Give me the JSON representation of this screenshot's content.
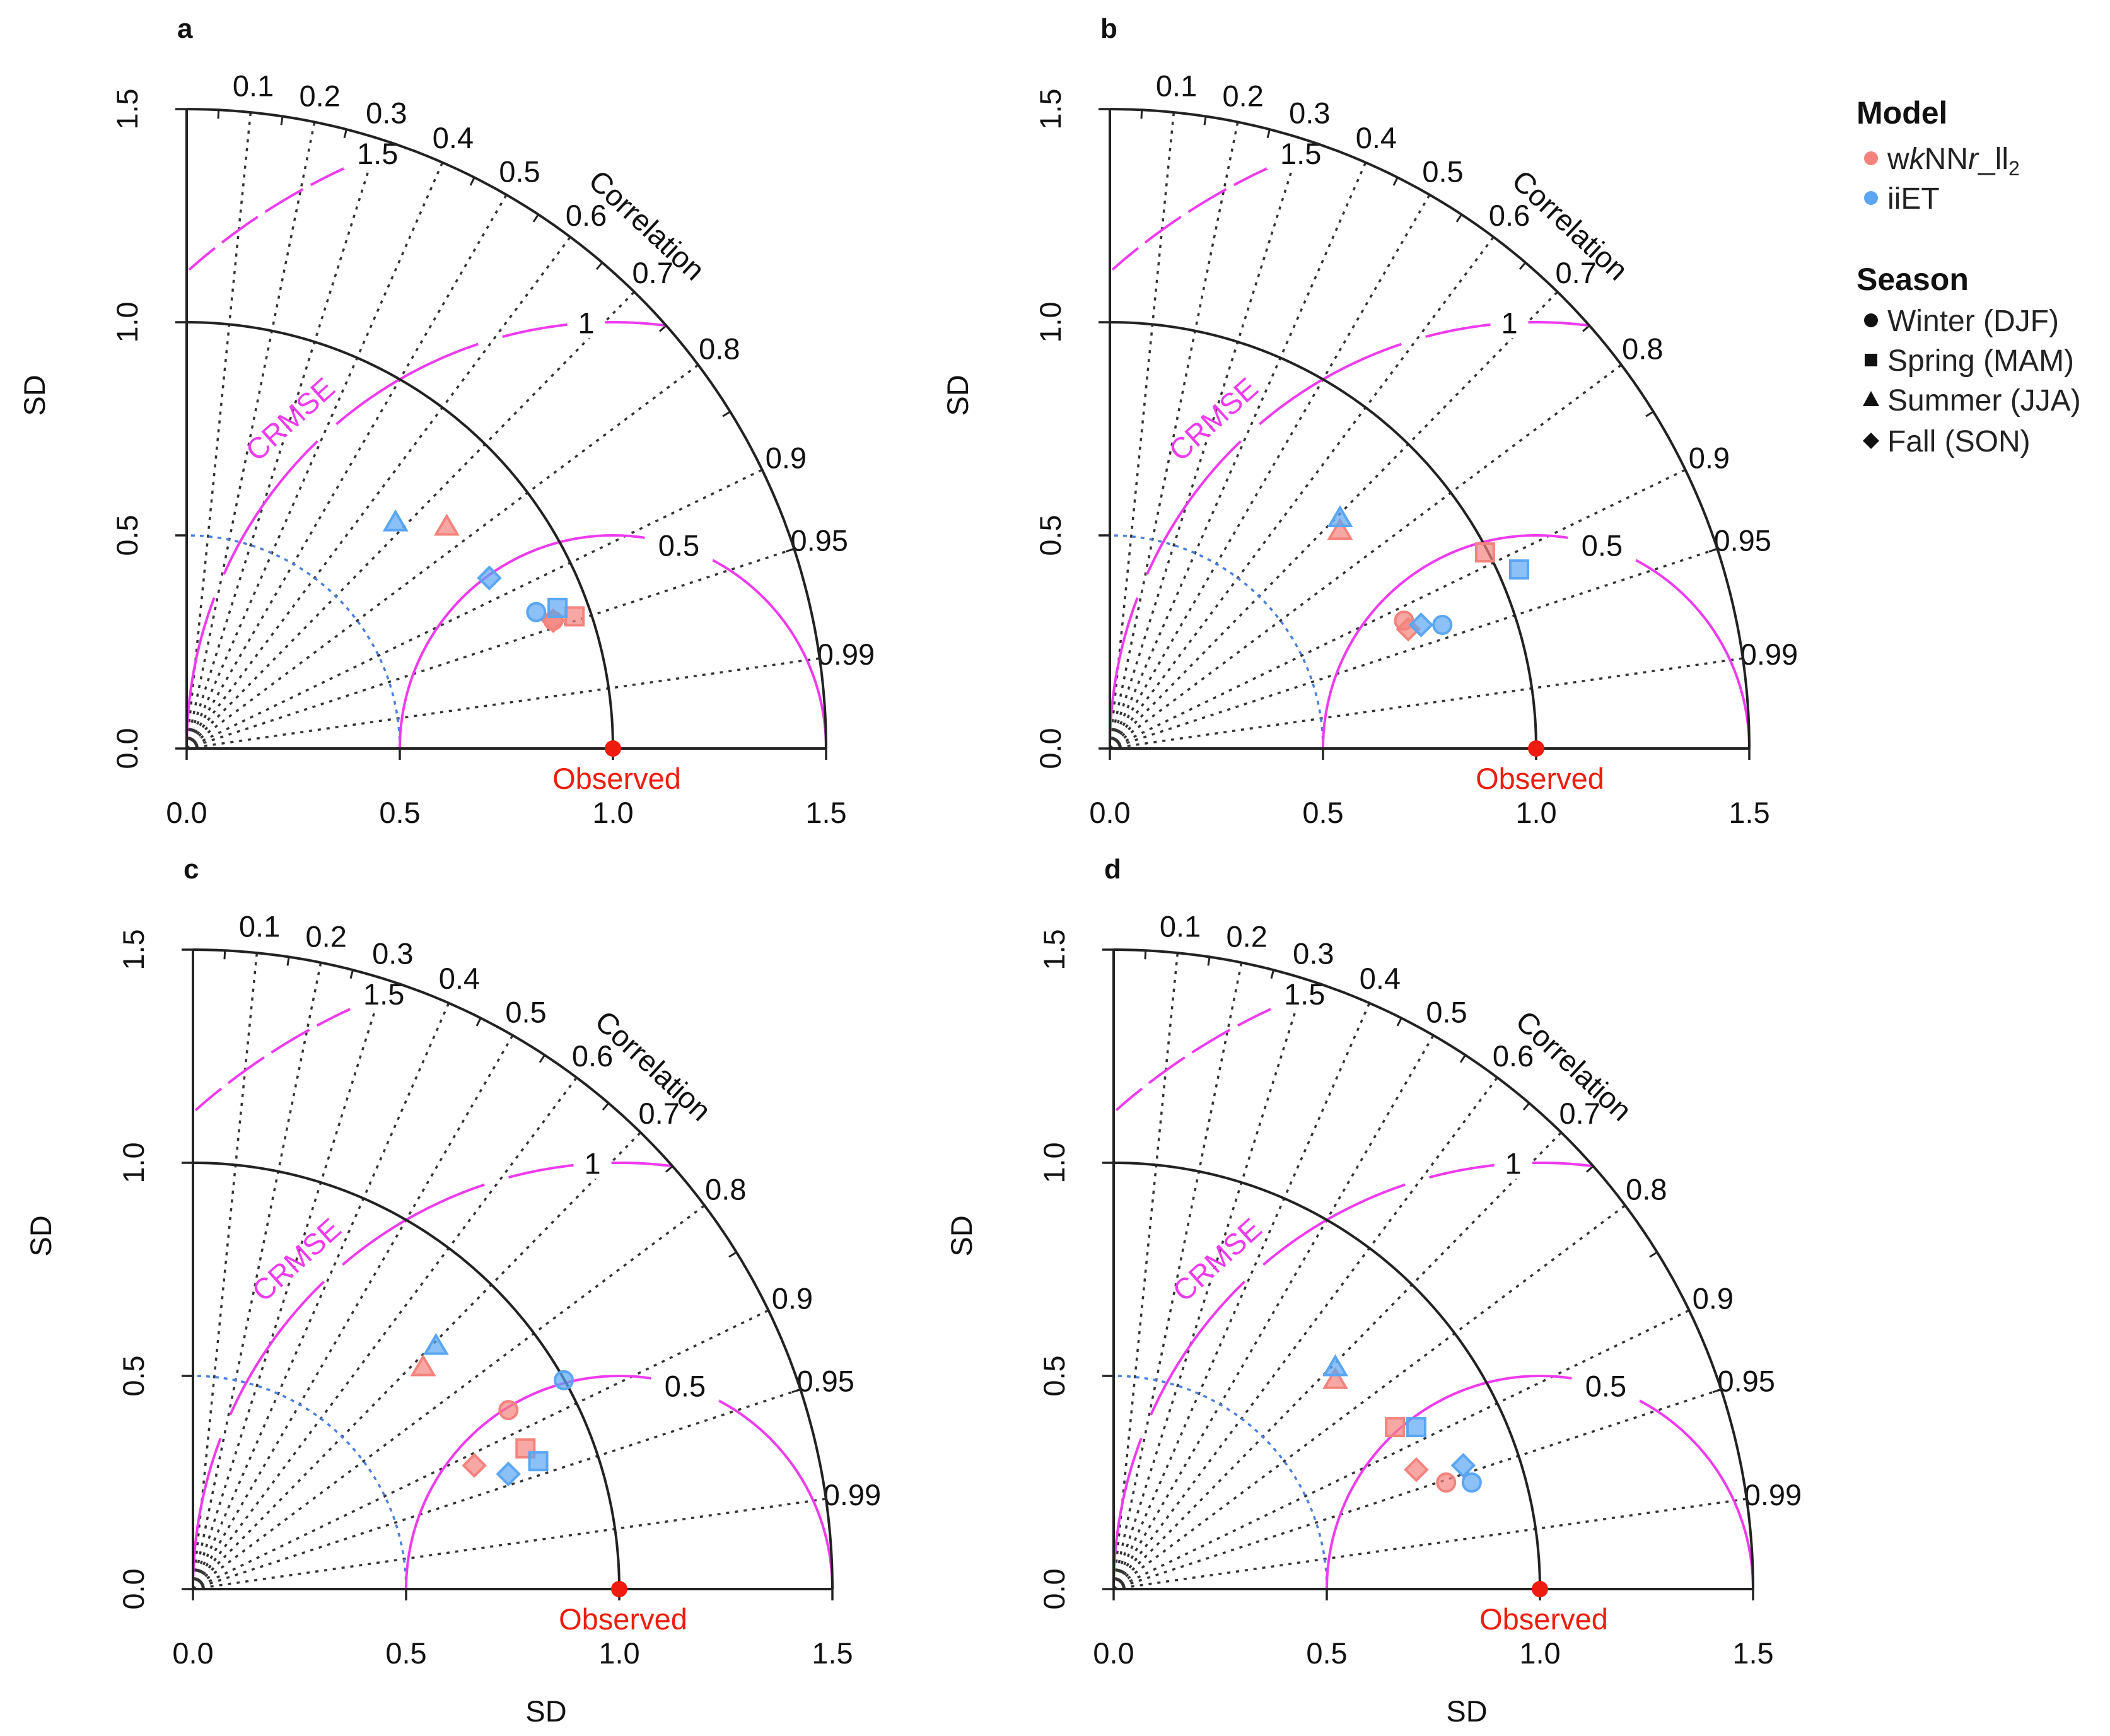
{
  "colors": {
    "wknn": "#f4837d",
    "iiet": "#5aa6f2",
    "observed": "#ee1c0e",
    "crmse": "#ee3bee",
    "ref_arc": "#4a7ee0",
    "axis": "#222222"
  },
  "legend": {
    "model_title": "Model",
    "model_items": [
      {
        "label_prefix": "w",
        "label_italic_k": "k",
        "label_mid": "NN",
        "label_italic_r": "r",
        "label_suffix": "_ll",
        "label_sub": "2",
        "color_key": "wknn"
      },
      {
        "label": "iiET",
        "color_key": "iiet"
      }
    ],
    "season_title": "Season",
    "season_items": [
      {
        "label": "Winter (DJF)",
        "shape": "circle"
      },
      {
        "label": "Spring (MAM)",
        "shape": "square"
      },
      {
        "label": "Summer (JJA)",
        "shape": "triangle"
      },
      {
        "label": "Fall (SON)",
        "shape": "diamond"
      }
    ]
  },
  "chart_data": [
    {
      "type": "scatter",
      "subtype": "taylor-diagram",
      "panel_label": "a",
      "ylabel": "SD",
      "xlabel": "",
      "correlation_label": "Correlation",
      "crmse_label": "CRMSE",
      "observed_label": "Observed",
      "sd_range": [
        0,
        1.5
      ],
      "sd_ticks": [
        "0.0",
        "0.5",
        "1.0",
        "1.5"
      ],
      "correlation_ticks": [
        "0.1",
        "0.2",
        "0.3",
        "0.4",
        "0.5",
        "0.6",
        "0.7",
        "0.8",
        "0.9",
        "0.95",
        "0.99"
      ],
      "crmse_contours": [
        "0.5",
        "1",
        "1.5"
      ],
      "observed": [
        1.0,
        0.0
      ],
      "series": [
        {
          "name": "wkNNr_ll2",
          "color_key": "wknn",
          "points": [
            {
              "season": "Winter (DJF)",
              "shape": "circle",
              "x": 0.86,
              "y": 0.3
            },
            {
              "season": "Spring (MAM)",
              "shape": "square",
              "x": 0.91,
              "y": 0.31
            },
            {
              "season": "Summer (JJA)",
              "shape": "triangle",
              "x": 0.61,
              "y": 0.52
            },
            {
              "season": "Fall (SON)",
              "shape": "diamond",
              "x": 0.86,
              "y": 0.3
            }
          ]
        },
        {
          "name": "iiET",
          "color_key": "iiet",
          "points": [
            {
              "season": "Winter (DJF)",
              "shape": "circle",
              "x": 0.82,
              "y": 0.32
            },
            {
              "season": "Spring (MAM)",
              "shape": "square",
              "x": 0.87,
              "y": 0.33
            },
            {
              "season": "Summer (JJA)",
              "shape": "triangle",
              "x": 0.49,
              "y": 0.53
            },
            {
              "season": "Fall (SON)",
              "shape": "diamond",
              "x": 0.71,
              "y": 0.4
            }
          ]
        }
      ]
    },
    {
      "type": "scatter",
      "subtype": "taylor-diagram",
      "panel_label": "b",
      "ylabel": "SD",
      "xlabel": "",
      "correlation_label": "Correlation",
      "crmse_label": "CRMSE",
      "observed_label": "Observed",
      "sd_range": [
        0,
        1.5
      ],
      "sd_ticks": [
        "0.0",
        "0.5",
        "1.0",
        "1.5"
      ],
      "correlation_ticks": [
        "0.1",
        "0.2",
        "0.3",
        "0.4",
        "0.5",
        "0.6",
        "0.7",
        "0.8",
        "0.9",
        "0.95",
        "0.99"
      ],
      "crmse_contours": [
        "0.5",
        "1",
        "1.5"
      ],
      "observed": [
        1.0,
        0.0
      ],
      "series": [
        {
          "name": "wkNNr_ll2",
          "color_key": "wknn",
          "points": [
            {
              "season": "Winter (DJF)",
              "shape": "circle",
              "x": 0.69,
              "y": 0.3
            },
            {
              "season": "Spring (MAM)",
              "shape": "square",
              "x": 0.88,
              "y": 0.46
            },
            {
              "season": "Summer (JJA)",
              "shape": "triangle",
              "x": 0.54,
              "y": 0.51
            },
            {
              "season": "Fall (SON)",
              "shape": "diamond",
              "x": 0.7,
              "y": 0.28
            }
          ]
        },
        {
          "name": "iiET",
          "color_key": "iiet",
          "points": [
            {
              "season": "Winter (DJF)",
              "shape": "circle",
              "x": 0.78,
              "y": 0.29
            },
            {
              "season": "Spring (MAM)",
              "shape": "square",
              "x": 0.96,
              "y": 0.42
            },
            {
              "season": "Summer (JJA)",
              "shape": "triangle",
              "x": 0.54,
              "y": 0.54
            },
            {
              "season": "Fall (SON)",
              "shape": "diamond",
              "x": 0.73,
              "y": 0.29
            }
          ]
        }
      ]
    },
    {
      "type": "scatter",
      "subtype": "taylor-diagram",
      "panel_label": "c",
      "ylabel": "SD",
      "xlabel": "SD",
      "correlation_label": "Correlation",
      "crmse_label": "CRMSE",
      "observed_label": "Observed",
      "sd_range": [
        0,
        1.5
      ],
      "sd_ticks": [
        "0.0",
        "0.5",
        "1.0",
        "1.5"
      ],
      "correlation_ticks": [
        "0.1",
        "0.2",
        "0.3",
        "0.4",
        "0.5",
        "0.6",
        "0.7",
        "0.8",
        "0.9",
        "0.95",
        "0.99"
      ],
      "crmse_contours": [
        "0.5",
        "1",
        "1.5"
      ],
      "observed": [
        1.0,
        0.0
      ],
      "series": [
        {
          "name": "wkNNr_ll2",
          "color_key": "wknn",
          "points": [
            {
              "season": "Winter (DJF)",
              "shape": "circle",
              "x": 0.74,
              "y": 0.42
            },
            {
              "season": "Spring (MAM)",
              "shape": "square",
              "x": 0.78,
              "y": 0.33
            },
            {
              "season": "Summer (JJA)",
              "shape": "triangle",
              "x": 0.54,
              "y": 0.52
            },
            {
              "season": "Fall (SON)",
              "shape": "diamond",
              "x": 0.66,
              "y": 0.29
            }
          ]
        },
        {
          "name": "iiET",
          "color_key": "iiet",
          "points": [
            {
              "season": "Winter (DJF)",
              "shape": "circle",
              "x": 0.87,
              "y": 0.49
            },
            {
              "season": "Spring (MAM)",
              "shape": "square",
              "x": 0.81,
              "y": 0.3
            },
            {
              "season": "Summer (JJA)",
              "shape": "triangle",
              "x": 0.57,
              "y": 0.57
            },
            {
              "season": "Fall (SON)",
              "shape": "diamond",
              "x": 0.74,
              "y": 0.27
            }
          ]
        }
      ]
    },
    {
      "type": "scatter",
      "subtype": "taylor-diagram",
      "panel_label": "d",
      "ylabel": "SD",
      "xlabel": "SD",
      "correlation_label": "Correlation",
      "crmse_label": "CRMSE",
      "observed_label": "Observed",
      "sd_range": [
        0,
        1.5
      ],
      "sd_ticks": [
        "0.0",
        "0.5",
        "1.0",
        "1.5"
      ],
      "correlation_ticks": [
        "0.1",
        "0.2",
        "0.3",
        "0.4",
        "0.5",
        "0.6",
        "0.7",
        "0.8",
        "0.9",
        "0.95",
        "0.99"
      ],
      "crmse_contours": [
        "0.5",
        "1",
        "1.5"
      ],
      "observed": [
        1.0,
        0.0
      ],
      "series": [
        {
          "name": "wkNNr_ll2",
          "color_key": "wknn",
          "points": [
            {
              "season": "Winter (DJF)",
              "shape": "circle",
              "x": 0.78,
              "y": 0.25
            },
            {
              "season": "Spring (MAM)",
              "shape": "square",
              "x": 0.66,
              "y": 0.38
            },
            {
              "season": "Summer (JJA)",
              "shape": "triangle",
              "x": 0.52,
              "y": 0.49
            },
            {
              "season": "Fall (SON)",
              "shape": "diamond",
              "x": 0.71,
              "y": 0.28
            }
          ]
        },
        {
          "name": "iiET",
          "color_key": "iiet",
          "points": [
            {
              "season": "Winter (DJF)",
              "shape": "circle",
              "x": 0.84,
              "y": 0.25
            },
            {
              "season": "Spring (MAM)",
              "shape": "square",
              "x": 0.71,
              "y": 0.38
            },
            {
              "season": "Summer (JJA)",
              "shape": "triangle",
              "x": 0.52,
              "y": 0.52
            },
            {
              "season": "Fall (SON)",
              "shape": "diamond",
              "x": 0.82,
              "y": 0.29
            }
          ]
        }
      ]
    }
  ]
}
